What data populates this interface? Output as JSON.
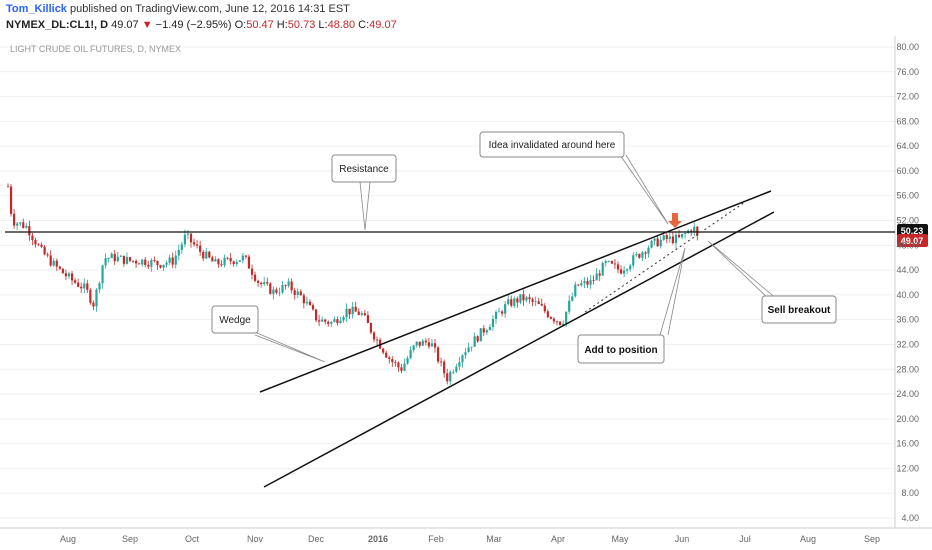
{
  "header": {
    "author": "Tom_Killick",
    "published": "published on TradingView.com, June 12, 2016 14:31 EST",
    "symbol": "NYMEX_DL:CL1!, D",
    "last": "49.07",
    "change_arrow": "▼",
    "change": "−1.49 (−2.95%)",
    "o_label": "O:",
    "o_val": "50.47",
    "h_label": "H:",
    "h_val": "50.73",
    "l_label": "L:",
    "l_val": "48.80",
    "c_label": "C:",
    "c_val": "49.07"
  },
  "colors": {
    "up": "#26a69a",
    "down": "#c62828",
    "line": "#111111",
    "grid": "#f0f0f0"
  },
  "chart_data": {
    "type": "candlestick",
    "title": "LIGHT CRUDE OIL FUTURES, D, NYMEX",
    "ylim": [
      4,
      80
    ],
    "y_ticks": [
      "80.00",
      "76.00",
      "72.00",
      "68.00",
      "64.00",
      "60.00",
      "56.00",
      "52.00",
      "48.00",
      "44.00",
      "40.00",
      "36.00",
      "32.00",
      "28.00",
      "24.00",
      "20.00",
      "16.00",
      "12.00",
      "8.00",
      "4.00"
    ],
    "x_ticks": [
      "Aug",
      "Sep",
      "Oct",
      "Nov",
      "Dec",
      "2016",
      "Feb",
      "Mar",
      "Apr",
      "May",
      "Jun",
      "Jul",
      "Aug",
      "Sep"
    ],
    "price_labels": [
      "50.23",
      "49.07"
    ],
    "price_series": [
      {
        "date": "2015-07-16",
        "close": 57.5
      },
      {
        "date": "2015-07-18",
        "close": 52.0
      },
      {
        "date": "2015-07-25",
        "close": 51.0
      },
      {
        "date": "2015-08-01",
        "close": 47.0
      },
      {
        "date": "2015-08-08",
        "close": 44.5
      },
      {
        "date": "2015-08-15",
        "close": 42.5
      },
      {
        "date": "2015-08-22",
        "close": 41.0
      },
      {
        "date": "2015-08-26",
        "close": 38.5
      },
      {
        "date": "2015-08-31",
        "close": 46.0
      },
      {
        "date": "2015-09-05",
        "close": 46.0
      },
      {
        "date": "2015-09-12",
        "close": 45.5
      },
      {
        "date": "2015-09-19",
        "close": 45.5
      },
      {
        "date": "2015-09-26",
        "close": 45.0
      },
      {
        "date": "2015-10-03",
        "close": 45.5
      },
      {
        "date": "2015-10-09",
        "close": 49.5
      },
      {
        "date": "2015-10-16",
        "close": 47.0
      },
      {
        "date": "2015-10-23",
        "close": 45.0
      },
      {
        "date": "2015-10-30",
        "close": 45.5
      },
      {
        "date": "2015-11-06",
        "close": 46.0
      },
      {
        "date": "2015-11-13",
        "close": 42.0
      },
      {
        "date": "2015-11-20",
        "close": 40.5
      },
      {
        "date": "2015-11-27",
        "close": 41.5
      },
      {
        "date": "2015-12-04",
        "close": 39.5
      },
      {
        "date": "2015-12-11",
        "close": 36.0
      },
      {
        "date": "2015-12-18",
        "close": 35.5
      },
      {
        "date": "2015-12-25",
        "close": 37.5
      },
      {
        "date": "2016-01-01",
        "close": 37.0
      },
      {
        "date": "2016-01-08",
        "close": 33.0
      },
      {
        "date": "2016-01-15",
        "close": 29.5
      },
      {
        "date": "2016-01-20",
        "close": 28.0
      },
      {
        "date": "2016-01-27",
        "close": 32.0
      },
      {
        "date": "2016-02-03",
        "close": 32.5
      },
      {
        "date": "2016-02-11",
        "close": 26.5
      },
      {
        "date": "2016-02-18",
        "close": 30.5
      },
      {
        "date": "2016-02-25",
        "close": 33.0
      },
      {
        "date": "2016-03-04",
        "close": 36.0
      },
      {
        "date": "2016-03-11",
        "close": 38.5
      },
      {
        "date": "2016-03-18",
        "close": 39.5
      },
      {
        "date": "2016-03-25",
        "close": 38.5
      },
      {
        "date": "2016-04-01",
        "close": 36.5
      },
      {
        "date": "2016-04-06",
        "close": 35.5
      },
      {
        "date": "2016-04-13",
        "close": 41.5
      },
      {
        "date": "2016-04-20",
        "close": 42.0
      },
      {
        "date": "2016-04-27",
        "close": 45.0
      },
      {
        "date": "2016-05-04",
        "close": 44.0
      },
      {
        "date": "2016-05-11",
        "close": 46.0
      },
      {
        "date": "2016-05-18",
        "close": 48.0
      },
      {
        "date": "2016-05-25",
        "close": 49.0
      },
      {
        "date": "2016-06-01",
        "close": 49.0
      },
      {
        "date": "2016-06-08",
        "close": 51.0
      },
      {
        "date": "2016-06-10",
        "close": 49.07
      }
    ],
    "annotations": [
      {
        "text": "Resistance"
      },
      {
        "text": "Wedge"
      },
      {
        "text": "Idea invalidated around here"
      },
      {
        "text": "Add to position"
      },
      {
        "text": "Sell breakout"
      }
    ]
  }
}
